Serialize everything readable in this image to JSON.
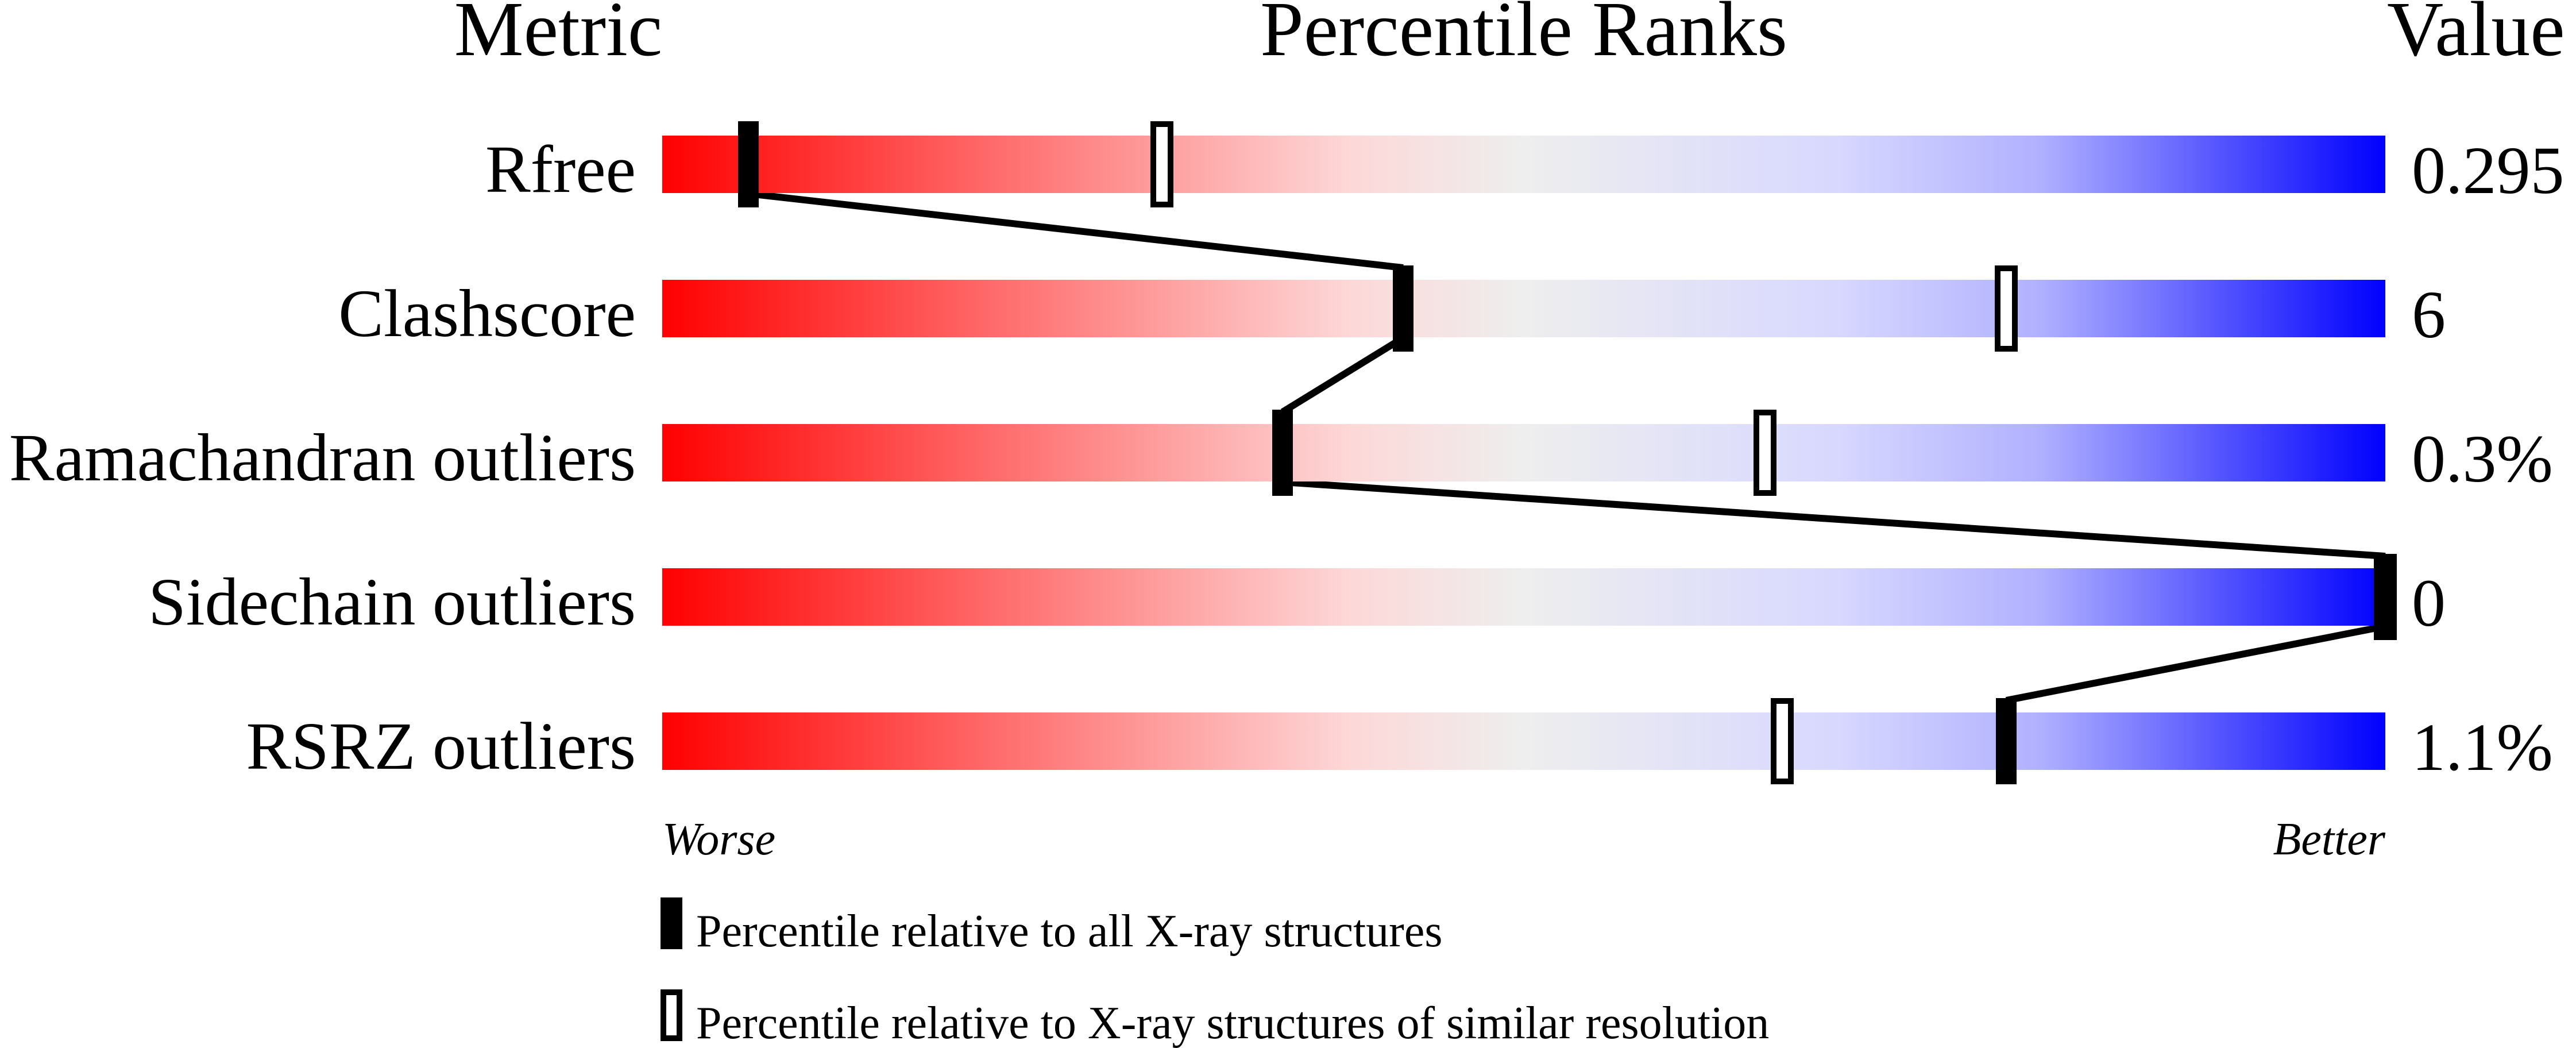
{
  "chart_data": {
    "type": "percentile-bars",
    "headers": {
      "metric": "Metric",
      "ranks": "Percentile Ranks",
      "value": "Value"
    },
    "xlim": [
      0,
      100
    ],
    "axis_labels": {
      "left": "Worse",
      "right": "Better"
    },
    "gradient_colors": {
      "worse": "#ff0000",
      "middle": "#eeeeee",
      "better": "#0000ff"
    },
    "metrics": [
      {
        "name": "Rfree",
        "value": "0.295",
        "percentile_all": 5,
        "percentile_similar": 29
      },
      {
        "name": "Clashscore",
        "value": "6",
        "percentile_all": 43,
        "percentile_similar": 78
      },
      {
        "name": "Ramachandran outliers",
        "value": "0.3%",
        "percentile_all": 36,
        "percentile_similar": 64
      },
      {
        "name": "Sidechain outliers",
        "value": "0",
        "percentile_all": 100,
        "percentile_similar": 100
      },
      {
        "name": "RSRZ outliers",
        "value": "1.1%",
        "percentile_all": 78,
        "percentile_similar": 65
      }
    ],
    "legend": [
      {
        "marker": "filled",
        "label": "Percentile relative to all X-ray structures"
      },
      {
        "marker": "open",
        "label": "Percentile relative to X-ray structures of similar resolution"
      }
    ]
  }
}
